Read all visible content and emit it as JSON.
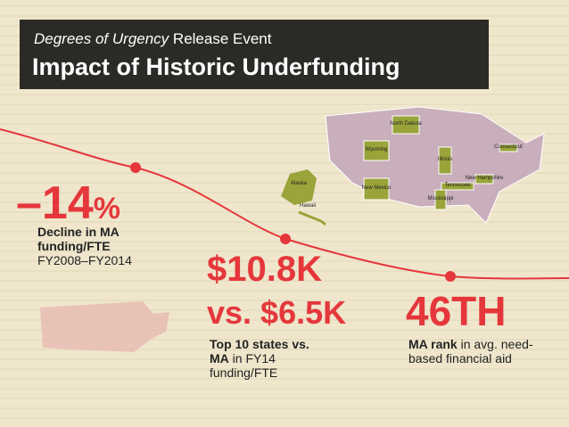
{
  "header": {
    "kicker_italic": "Degrees of Urgency",
    "kicker": "Release Event",
    "title": "Impact of Historic Underfunding"
  },
  "stats": [
    {
      "number": "–14",
      "unit": "%",
      "label_bold": "Decline in MA funding/FTE",
      "label": "FY2008–FY2014"
    },
    {
      "number": "$10.8K",
      "number2": "vs. $6.5K",
      "label_bold": "Top 10 states vs. MA",
      "label": "in FY14 funding/FTE"
    },
    {
      "number": "46TH",
      "label_bold": "MA rank",
      "label": "in avg. need-based financial aid"
    }
  ],
  "map": {
    "labels": [
      "North Dakota",
      "Wyoming",
      "Illinois",
      "Connecticut",
      "New Mexico",
      "Alaska",
      "Hawaii",
      "Tennessee",
      "New Hampshire",
      "Mississippi"
    ]
  }
}
